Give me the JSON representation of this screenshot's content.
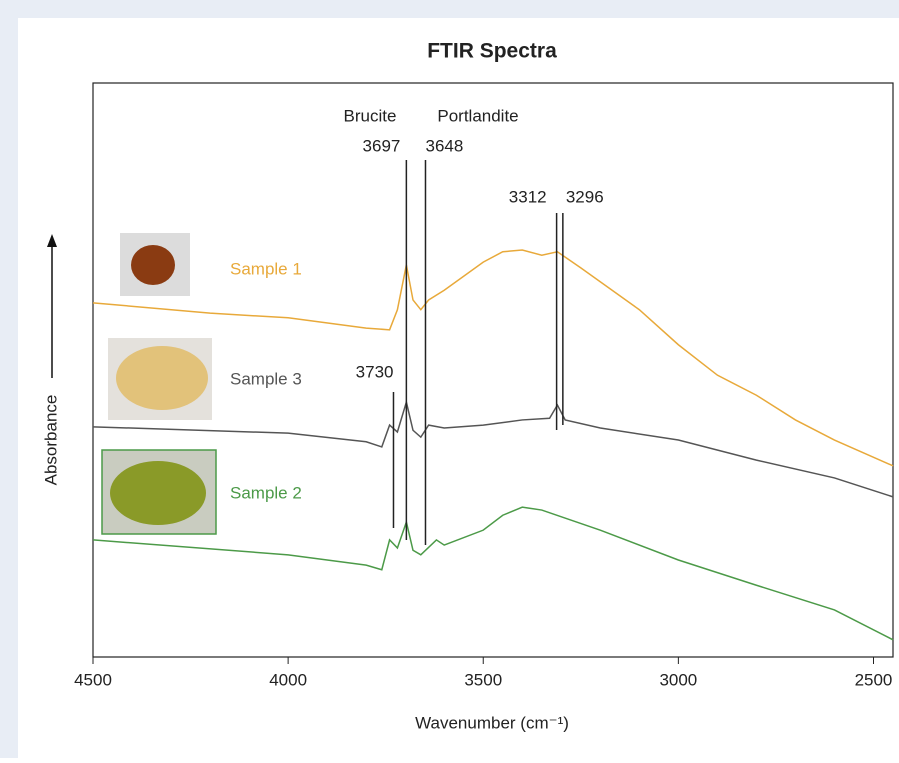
{
  "chart_data": {
    "type": "line",
    "title": "FTIR Spectra",
    "x_label": "Wavenumber (cm⁻¹)",
    "y_label": "Absorbance",
    "xlim": [
      4500,
      2450
    ],
    "xticks": [
      4500,
      4000,
      3500,
      3000,
      2500
    ],
    "ylim": [
      0,
      100
    ],
    "series": [
      {
        "name": "Sample 1",
        "color": "#e8a93a",
        "x": [
          4500,
          4200,
          4000,
          3800,
          3740,
          3720,
          3697,
          3680,
          3660,
          3640,
          3600,
          3500,
          3450,
          3400,
          3350,
          3310,
          3250,
          3100,
          3000,
          2900,
          2800,
          2700,
          2600,
          2450
        ],
        "values": [
          61.7,
          59.9,
          59.1,
          57.3,
          57.0,
          60.5,
          68.3,
          62.2,
          60.5,
          62.2,
          63.9,
          68.8,
          70.6,
          70.9,
          70.0,
          70.6,
          67.8,
          60.5,
          54.4,
          49.1,
          45.6,
          41.3,
          37.8,
          33.3
        ]
      },
      {
        "name": "Sample 3",
        "color": "#555555",
        "x": [
          4500,
          4000,
          3800,
          3760,
          3740,
          3720,
          3697,
          3680,
          3660,
          3640,
          3600,
          3500,
          3400,
          3330,
          3310,
          3290,
          3200,
          3000,
          2800,
          2600,
          2450
        ],
        "values": [
          40.1,
          39.0,
          37.5,
          36.6,
          40.4,
          39.2,
          44.4,
          39.5,
          38.3,
          40.4,
          39.9,
          40.4,
          41.3,
          41.6,
          43.9,
          41.3,
          39.9,
          37.8,
          34.3,
          31.2,
          27.9
        ]
      },
      {
        "name": "Sample 2",
        "color": "#4c9a48",
        "x": [
          4500,
          4000,
          3800,
          3760,
          3740,
          3720,
          3697,
          3680,
          3660,
          3620,
          3600,
          3500,
          3450,
          3400,
          3350,
          3200,
          3000,
          2800,
          2600,
          2450
        ],
        "values": [
          20.4,
          17.8,
          16.0,
          15.2,
          20.4,
          19.0,
          23.5,
          18.6,
          17.8,
          20.4,
          19.5,
          22.1,
          24.7,
          26.1,
          25.6,
          22.1,
          16.9,
          12.5,
          8.2,
          3.0
        ]
      }
    ],
    "peaks": [
      3730,
      3697,
      3648,
      3312,
      3296
    ],
    "annotations": [
      "Brucite",
      "Portlandite"
    ]
  }
}
